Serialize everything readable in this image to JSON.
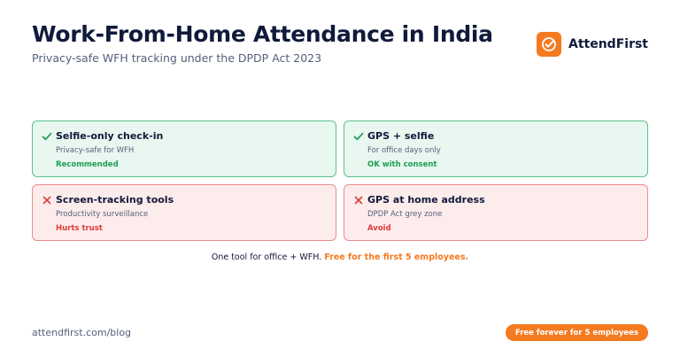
{
  "header": {
    "title": "Work-From-Home Attendance in India",
    "subtitle": "Privacy-safe WFH tracking under the DPDP Act 2023"
  },
  "brand": {
    "name": "AttendFirst",
    "logo_icon": "checkmark-circle-icon",
    "color": "#f47a20"
  },
  "cards": [
    {
      "title": "Selfie-only check-in",
      "description": "Privacy-safe for WFH",
      "verdict": "Recommended",
      "status": "good",
      "icon": "checkmark-icon"
    },
    {
      "title": "GPS + selfie",
      "description": "For office days only",
      "verdict": "OK with consent",
      "status": "good",
      "icon": "checkmark-icon"
    },
    {
      "title": "Screen-tracking tools",
      "description": "Productivity surveillance",
      "verdict": "Hurts trust",
      "status": "bad",
      "icon": "cross-icon"
    },
    {
      "title": "GPS at home address",
      "description": "DPDP Act grey zone",
      "verdict": "Avoid",
      "status": "bad",
      "icon": "cross-icon"
    }
  ],
  "tagline": {
    "text": "One tool for office + WFH.",
    "highlight": "Free for the first 5 employees."
  },
  "footer": {
    "url": "attendfirst.com/blog",
    "cta_label": "Free forever for 5 employees"
  },
  "colors": {
    "good": "#1f9d55",
    "bad": "#e03a3a",
    "accent": "#f47a20"
  }
}
